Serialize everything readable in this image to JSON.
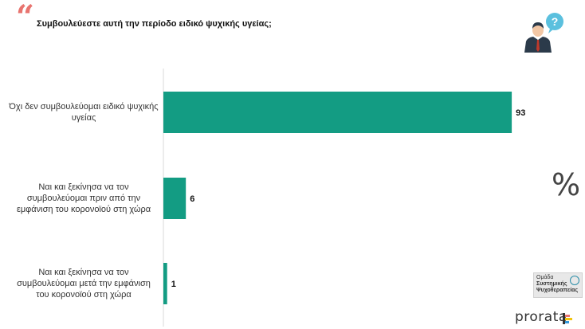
{
  "question": "Συμβουλεύεστε αυτή την περίοδο ειδικό ψυχικής υγείας;",
  "chart_data": {
    "type": "bar",
    "orientation": "horizontal",
    "categories": [
      "Όχι δεν συμβουλεύομαι ειδικό ψυχικής υγείας",
      "Ναι και ξεκίνησα να τον συμβουλεύομαι πριν από την εμφάνιση του κορονοϊού στη χώρα",
      "Ναι και ξεκίνησα να τον συμβουλεύομαι μετά την εμφάνιση του κορονοϊού στη χώρα"
    ],
    "category_lines": [
      [
        "Όχι δεν συμβουλεύομαι ειδικό ψυχικής",
        "υγείας"
      ],
      [
        "Ναι και ξεκίνησα να τον",
        "συμβουλεύομαι πριν από την",
        "εμφάνιση του κορονοϊού στη χώρα"
      ],
      [
        "Ναι και ξεκίνησα να τον",
        "συμβουλεύομαι μετά την εμφάνιση",
        "του κορονοϊού στη χώρα"
      ]
    ],
    "values": [
      93,
      6,
      1
    ],
    "value_labels": [
      "93",
      "6",
      "1"
    ],
    "xlim": [
      0,
      100
    ],
    "bar_color": "#139c83",
    "grid": false
  },
  "percent_symbol": "%",
  "logo": {
    "lines": [
      "Ομάδα",
      "Συστημικής",
      "Ψυχοθεραπείας"
    ]
  },
  "brand": "prorata",
  "colors": {
    "accent": "#e8746f",
    "bar": "#139c83",
    "axis": "#d9d9d9"
  }
}
